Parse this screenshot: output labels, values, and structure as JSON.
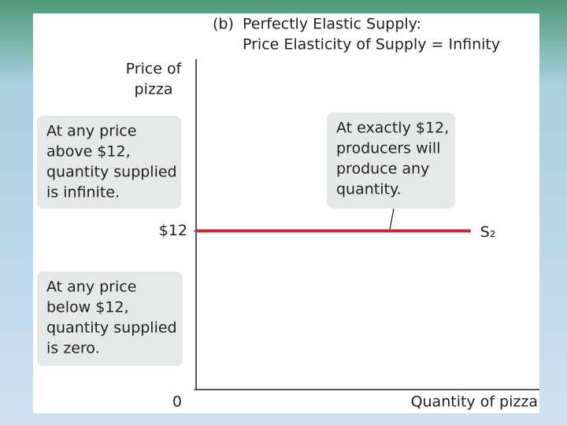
{
  "chart_data": {
    "type": "line",
    "title_label": "(b)",
    "title": [
      "Perfectly Elastic Supply:",
      "Price Elasticity of Supply = Infinity"
    ],
    "y_label": [
      "Price of",
      "pizza"
    ],
    "x_label": "Quantity of pizza",
    "x": [
      0,
      8
    ],
    "xlim": [
      0,
      10
    ],
    "ylim": [
      0,
      25
    ],
    "yticks": [
      0,
      {
        "value": 12,
        "label": "$12"
      }
    ],
    "series": [
      {
        "name": "S₂",
        "color": "#c8283c",
        "values": [
          12,
          12
        ]
      }
    ],
    "annotations": [
      {
        "lines": [
          "At any price",
          "above $12,",
          "quantity supplied",
          "is infinite."
        ]
      },
      {
        "lines": [
          "At any price",
          "below $12,",
          "quantity supplied",
          "is zero."
        ]
      },
      {
        "lines": [
          "At exactly $12,",
          "producers will",
          "produce any",
          "quantity."
        ]
      }
    ]
  }
}
